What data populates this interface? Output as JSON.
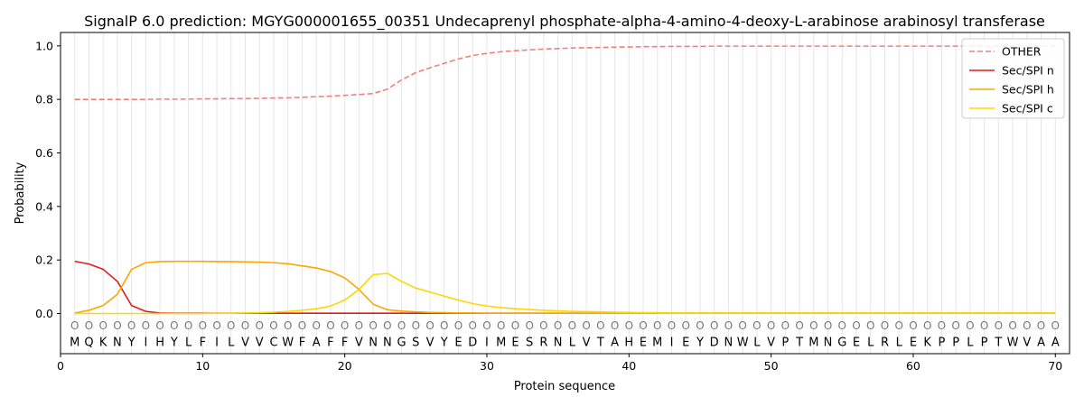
{
  "chart_data": {
    "type": "line",
    "title": "SignalP 6.0 prediction: MGYG000001655_00351 Undecaprenyl phosphate-alpha-4-amino-4-deoxy-L-arabinose arabinosyl transferase",
    "xlabel": "Protein sequence",
    "ylabel": "Probability",
    "xlim": [
      0,
      71
    ],
    "ylim": [
      -0.15,
      1.05
    ],
    "x_ticks": [
      0,
      10,
      20,
      30,
      40,
      50,
      60,
      70
    ],
    "y_ticks": [
      0.0,
      0.2,
      0.4,
      0.6,
      0.8,
      1.0
    ],
    "grid": "vertical lines at each residue",
    "legend_position": "top-right",
    "sequence": [
      "M",
      "Q",
      "K",
      "N",
      "Y",
      "I",
      "H",
      "Y",
      "L",
      "F",
      "I",
      "L",
      "V",
      "V",
      "C",
      "W",
      "F",
      "A",
      "F",
      "F",
      "V",
      "N",
      "N",
      "G",
      "S",
      "V",
      "Y",
      "E",
      "D",
      "I",
      "M",
      "E",
      "S",
      "R",
      "N",
      "L",
      "V",
      "T",
      "A",
      "H",
      "E",
      "M",
      "I",
      "E",
      "Y",
      "D",
      "N",
      "W",
      "L",
      "V",
      "P",
      "T",
      "M",
      "N",
      "G",
      "E",
      "L",
      "R",
      "L",
      "E",
      "K",
      "P",
      "P",
      "L",
      "P",
      "T",
      "W",
      "V",
      "A",
      "A"
    ],
    "state_marker": "O",
    "series": [
      {
        "name": "OTHER",
        "color": "#f08080",
        "dash": "dashed",
        "values": [
          0.8,
          0.8,
          0.8,
          0.8,
          0.8,
          0.8,
          0.801,
          0.801,
          0.801,
          0.802,
          0.802,
          0.803,
          0.803,
          0.804,
          0.805,
          0.806,
          0.808,
          0.81,
          0.812,
          0.815,
          0.818,
          0.822,
          0.838,
          0.873,
          0.9,
          0.918,
          0.935,
          0.951,
          0.964,
          0.972,
          0.978,
          0.982,
          0.985,
          0.988,
          0.99,
          0.992,
          0.993,
          0.994,
          0.995,
          0.996,
          0.997,
          0.997,
          0.998,
          0.998,
          0.998,
          0.999,
          0.999,
          0.999,
          0.999,
          0.999,
          0.999,
          0.999,
          0.999,
          0.999,
          0.999,
          0.999,
          0.999,
          0.999,
          0.999,
          0.999,
          0.999,
          0.999,
          0.999,
          0.999,
          0.999,
          0.999,
          0.999,
          0.999,
          0.999,
          0.999
        ]
      },
      {
        "name": "Sec/SPI n",
        "color": "#e31a1c",
        "dash": "solid",
        "values": [
          0.195,
          0.185,
          0.165,
          0.12,
          0.03,
          0.008,
          0.002,
          0.001,
          0.001,
          0.001,
          0.001,
          0.001,
          0.001,
          0.001,
          0.001,
          0.001,
          0.001,
          0.001,
          0.001,
          0.001,
          0.001,
          0.001,
          0.001,
          0.001,
          0.001,
          0.001,
          0.001,
          0.001,
          0.001,
          0.001,
          0.001,
          0.001,
          0.001,
          0.001,
          0.001,
          0.001,
          0.001,
          0.001,
          0.001,
          0.001,
          0.001,
          0.001,
          0.001,
          0.001,
          0.001,
          0.001,
          0.001,
          0.001,
          0.001,
          0.001,
          0.001,
          0.001,
          0.001,
          0.001,
          0.001,
          0.001,
          0.001,
          0.001,
          0.001,
          0.001,
          0.001,
          0.001,
          0.001,
          0.001,
          0.001,
          0.001,
          0.001,
          0.001,
          0.001,
          0.001
        ]
      },
      {
        "name": "Sec/SPI h",
        "color": "#ffa500",
        "dash": "solid",
        "values": [
          0.002,
          0.012,
          0.03,
          0.072,
          0.165,
          0.19,
          0.194,
          0.195,
          0.195,
          0.195,
          0.194,
          0.194,
          0.193,
          0.192,
          0.19,
          0.186,
          0.178,
          0.17,
          0.157,
          0.133,
          0.09,
          0.035,
          0.014,
          0.009,
          0.006,
          0.004,
          0.003,
          0.002,
          0.002,
          0.001,
          0.001,
          0.001,
          0.001,
          0.001,
          0.001,
          0.001,
          0.001,
          0.001,
          0.001,
          0.001,
          0.001,
          0.001,
          0.001,
          0.001,
          0.001,
          0.001,
          0.001,
          0.001,
          0.001,
          0.001,
          0.001,
          0.001,
          0.001,
          0.001,
          0.001,
          0.001,
          0.001,
          0.001,
          0.001,
          0.001,
          0.001,
          0.001,
          0.001,
          0.001,
          0.001,
          0.001,
          0.001,
          0.001,
          0.001,
          0.001
        ]
      },
      {
        "name": "Sec/SPI c",
        "color": "#ffd700",
        "dash": "solid",
        "values": [
          0.0,
          0.0,
          0.0,
          0.0,
          0.0,
          0.0,
          0.0,
          0.0,
          0.0,
          0.0,
          0.001,
          0.001,
          0.002,
          0.003,
          0.005,
          0.008,
          0.012,
          0.018,
          0.028,
          0.05,
          0.09,
          0.145,
          0.15,
          0.12,
          0.095,
          0.08,
          0.065,
          0.05,
          0.037,
          0.028,
          0.022,
          0.018,
          0.015,
          0.012,
          0.01,
          0.008,
          0.007,
          0.006,
          0.005,
          0.004,
          0.003,
          0.003,
          0.002,
          0.002,
          0.002,
          0.002,
          0.002,
          0.002,
          0.002,
          0.002,
          0.002,
          0.002,
          0.002,
          0.002,
          0.002,
          0.002,
          0.002,
          0.002,
          0.002,
          0.002,
          0.002,
          0.002,
          0.002,
          0.002,
          0.002,
          0.002,
          0.002,
          0.002,
          0.002,
          0.002
        ]
      }
    ]
  }
}
